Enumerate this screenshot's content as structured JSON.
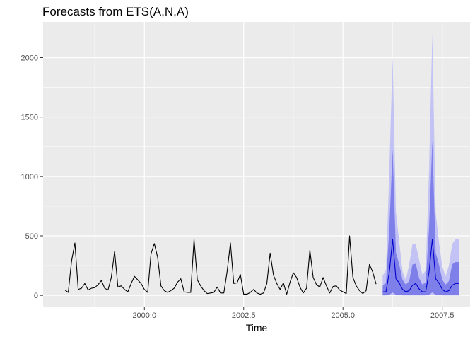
{
  "chart_data": {
    "type": "line",
    "title": "Forecasts from ETS(A,N,A)",
    "xlabel": "Time",
    "ylabel": "",
    "xlim": [
      1997.45,
      2008.2
    ],
    "ylim": [
      -100,
      2300
    ],
    "x_ticks": [
      2000.0,
      2002.5,
      2005.0,
      2007.5
    ],
    "x_tick_labels": [
      "2000.0",
      "2002.5",
      "2005.0",
      "2007.5"
    ],
    "y_ticks": [
      0,
      500,
      1000,
      1500,
      2000
    ],
    "y_tick_labels": [
      "0",
      "500",
      "1000",
      "1500",
      "2000"
    ],
    "grid": true,
    "legend": "none",
    "colors": {
      "panel": "#ebebeb",
      "grid": "#ffffff",
      "history_line": "#000000",
      "forecast_line": "#0000cc",
      "band_95": "#c2c2f4",
      "band_80": "#7f7fea"
    },
    "series": [
      {
        "kind": "history",
        "start": 1998.0,
        "frequency": 12,
        "values": [
          45,
          25,
          290,
          440,
          50,
          60,
          100,
          45,
          60,
          65,
          90,
          125,
          60,
          45,
          150,
          370,
          70,
          80,
          50,
          30,
          100,
          160,
          130,
          100,
          50,
          25,
          350,
          435,
          320,
          80,
          40,
          25,
          40,
          60,
          110,
          140,
          30,
          25,
          25,
          470,
          130,
          80,
          40,
          15,
          20,
          25,
          70,
          20,
          20,
          200,
          440,
          100,
          105,
          175,
          10,
          10,
          25,
          50,
          20,
          10,
          20,
          100,
          355,
          170,
          100,
          50,
          105,
          10,
          110,
          190,
          150,
          70,
          20,
          60,
          380,
          150,
          90,
          70,
          150,
          80,
          20,
          75,
          80,
          45,
          30,
          15,
          500,
          150,
          80,
          40,
          15,
          40,
          260,
          195,
          95
        ]
      },
      {
        "kind": "forecast",
        "start": 2006.0,
        "frequency": 12,
        "mean": [
          30,
          30,
          195,
          470,
          140,
          105,
          50,
          30,
          40,
          85,
          100,
          55,
          30,
          30,
          195,
          470,
          140,
          105,
          50,
          30,
          40,
          85,
          100,
          100
        ],
        "lo80": [
          0,
          0,
          5,
          25,
          5,
          5,
          0,
          0,
          0,
          0,
          0,
          0,
          0,
          0,
          5,
          25,
          5,
          5,
          0,
          0,
          0,
          0,
          0,
          0
        ],
        "hi80": [
          80,
          110,
          560,
          1230,
          360,
          260,
          130,
          90,
          120,
          260,
          265,
          145,
          90,
          110,
          560,
          1300,
          360,
          260,
          130,
          90,
          120,
          260,
          280,
          280
        ],
        "lo95": [
          0,
          0,
          0,
          5,
          0,
          0,
          0,
          0,
          0,
          0,
          0,
          0,
          0,
          0,
          0,
          5,
          0,
          0,
          0,
          0,
          0,
          0,
          0,
          0
        ],
        "hi95": [
          165,
          215,
          1050,
          2010,
          700,
          450,
          200,
          130,
          260,
          430,
          430,
          300,
          170,
          210,
          1050,
          2200,
          700,
          450,
          240,
          160,
          250,
          430,
          470,
          470
        ]
      }
    ]
  }
}
